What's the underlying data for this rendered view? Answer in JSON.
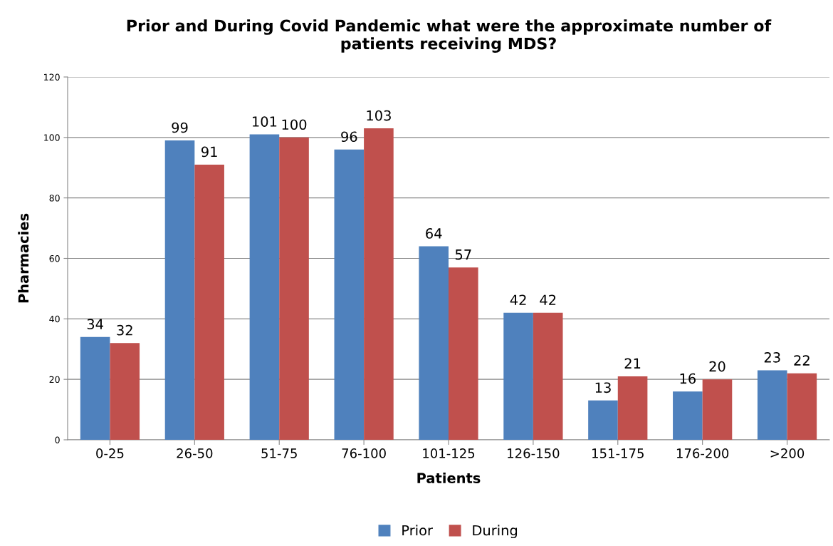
{
  "chart_data": {
    "type": "bar",
    "title": "Prior and During Covid Pandemic what were the approximate number of\npatients receiving MDS?",
    "xlabel": "Patients",
    "ylabel": "Pharmacies",
    "categories": [
      "0-25",
      "26-50",
      "51-75",
      "76-100",
      "101-125",
      "126-150",
      "151-175",
      "176-200",
      ">200"
    ],
    "series": [
      {
        "name": "Prior",
        "color": "#4f81bd",
        "values": [
          34,
          99,
          101,
          96,
          64,
          42,
          13,
          16,
          23
        ]
      },
      {
        "name": "During",
        "color": "#c0504d",
        "values": [
          32,
          91,
          100,
          103,
          57,
          42,
          21,
          20,
          22
        ]
      }
    ],
    "ylim": [
      0,
      120
    ],
    "yticks": [
      0,
      20,
      40,
      60,
      80,
      100,
      120
    ],
    "grid": "y",
    "legend": "bottom",
    "data_labels": true
  }
}
